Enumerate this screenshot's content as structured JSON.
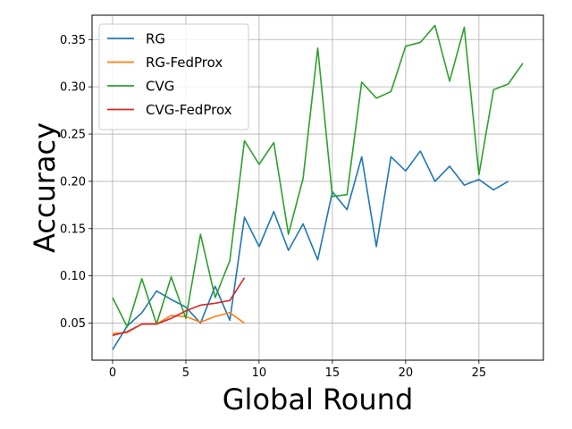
{
  "chart_data": {
    "type": "line",
    "title": "",
    "xlabel": "Global Round",
    "ylabel": "Accuracy",
    "xlim": [
      -1.4,
      29.4
    ],
    "ylim": [
      0.0108,
      0.3758
    ],
    "xticks": [
      0,
      5,
      10,
      15,
      20,
      25
    ],
    "yticks": [
      0.05,
      0.1,
      0.15,
      0.2,
      0.25,
      0.3,
      0.35
    ],
    "ytick_labels": [
      "0.05",
      "0.10",
      "0.15",
      "0.20",
      "0.25",
      "0.30",
      "0.35"
    ],
    "grid": true,
    "legend_position": "top-left",
    "series": [
      {
        "name": "RG",
        "color": "#1f77b4",
        "x": [
          0,
          1,
          2,
          3,
          4,
          5,
          6,
          7,
          8,
          9,
          10,
          11,
          12,
          13,
          14,
          15,
          16,
          17,
          18,
          19,
          20,
          21,
          22,
          23,
          24,
          25,
          26,
          27
        ],
        "values": [
          0.022,
          0.047,
          0.061,
          0.084,
          0.075,
          0.067,
          0.05,
          0.089,
          0.053,
          0.162,
          0.131,
          0.168,
          0.127,
          0.155,
          0.117,
          0.189,
          0.17,
          0.226,
          0.131,
          0.226,
          0.211,
          0.232,
          0.2,
          0.216,
          0.196,
          0.202,
          0.191,
          0.2
        ]
      },
      {
        "name": "RG-FedProx",
        "color": "#ff7f0e",
        "x": [
          0,
          1,
          2,
          3,
          4,
          5,
          6,
          7,
          8,
          9
        ],
        "values": [
          0.039,
          0.04,
          0.049,
          0.049,
          0.058,
          0.057,
          0.051,
          0.057,
          0.061,
          0.05
        ]
      },
      {
        "name": "CVG",
        "color": "#2ca02c",
        "x": [
          0,
          1,
          2,
          3,
          4,
          5,
          6,
          7,
          8,
          9,
          10,
          11,
          12,
          13,
          14,
          15,
          16,
          17,
          18,
          19,
          20,
          21,
          22,
          23,
          24,
          25,
          26,
          27,
          28
        ],
        "values": [
          0.077,
          0.046,
          0.097,
          0.049,
          0.099,
          0.055,
          0.144,
          0.077,
          0.116,
          0.243,
          0.218,
          0.241,
          0.144,
          0.203,
          0.341,
          0.184,
          0.186,
          0.305,
          0.288,
          0.295,
          0.343,
          0.347,
          0.365,
          0.306,
          0.363,
          0.207,
          0.297,
          0.303,
          0.325
        ]
      },
      {
        "name": "CVG-FedProx",
        "color": "#d62728",
        "x": [
          0,
          1,
          2,
          3,
          4,
          5,
          6,
          7,
          8,
          9
        ],
        "values": [
          0.037,
          0.041,
          0.049,
          0.049,
          0.055,
          0.063,
          0.069,
          0.071,
          0.074,
          0.098
        ]
      }
    ]
  }
}
